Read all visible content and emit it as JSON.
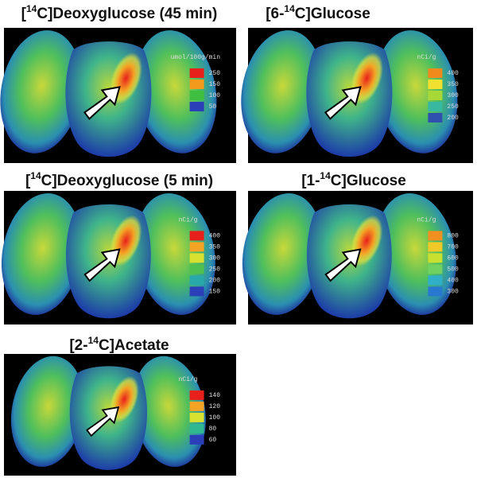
{
  "panels": [
    {
      "title": {
        "pre": "[",
        "sup": "14",
        "post": "C]Deoxyglucose (45 min)"
      },
      "unit": "umol/100g/min",
      "scale": [
        250,
        150,
        100,
        50
      ]
    },
    {
      "title": {
        "pre": "[6-",
        "sup": "14",
        "post": "C]Glucose"
      },
      "unit": "nCi/g",
      "scale": [
        400,
        350,
        300,
        250,
        200
      ]
    },
    {
      "title": {
        "pre": "[",
        "sup": "14",
        "post": "C]Deoxyglucose (5 min)"
      },
      "unit": "nCi/g",
      "scale": [
        400,
        350,
        300,
        250,
        200,
        150
      ]
    },
    {
      "title": {
        "pre": "[1-",
        "sup": "14",
        "post": "C]Glucose"
      },
      "unit": "nCi/g",
      "scale": [
        800,
        700,
        600,
        500,
        400,
        300
      ]
    },
    {
      "title": {
        "pre": "[2-",
        "sup": "14",
        "post": "C]Acetate"
      },
      "unit": "nCi/g",
      "scale": [
        140,
        120,
        100,
        80,
        60
      ]
    }
  ]
}
